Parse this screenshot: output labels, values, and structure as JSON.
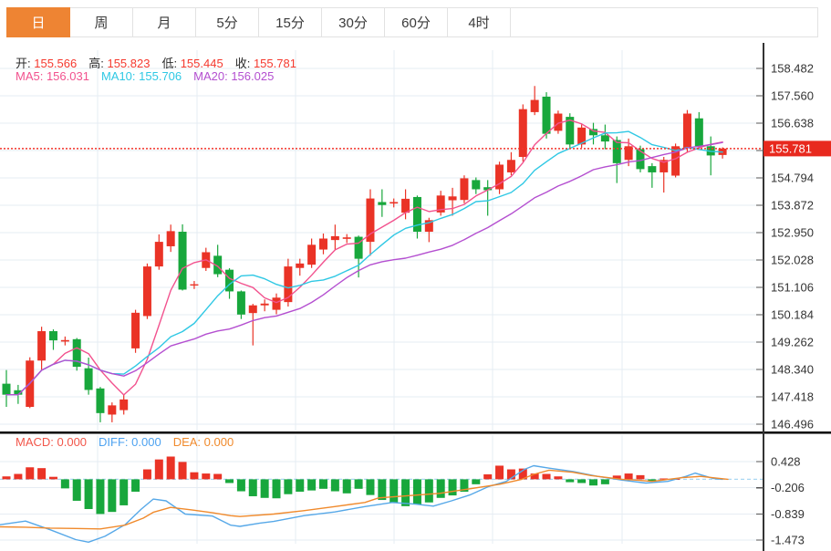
{
  "tabs": {
    "items": [
      {
        "label": "日",
        "active": true
      },
      {
        "label": "周",
        "active": false
      },
      {
        "label": "月",
        "active": false
      },
      {
        "label": "5分",
        "active": false
      },
      {
        "label": "15分",
        "active": false
      },
      {
        "label": "30分",
        "active": false
      },
      {
        "label": "60分",
        "active": false
      },
      {
        "label": "4时",
        "active": false
      }
    ]
  },
  "ohlc_bar": {
    "items": [
      {
        "label": "开:",
        "value": "155.566"
      },
      {
        "label": "高:",
        "value": "155.823"
      },
      {
        "label": "低:",
        "value": "155.445"
      },
      {
        "label": "收:",
        "value": "155.781"
      }
    ]
  },
  "ma_bar": {
    "items": [
      {
        "label": "MA5:",
        "value": "156.031",
        "color": "#f2528e"
      },
      {
        "label": "MA10:",
        "value": "155.706",
        "color": "#2fc8e4"
      },
      {
        "label": "MA20:",
        "value": "156.025",
        "color": "#b44fd0"
      }
    ]
  },
  "macd_bar": {
    "items": [
      {
        "label": "MACD:",
        "value": "0.000",
        "color": "#f2564a"
      },
      {
        "label": "DIFF:",
        "value": "0.000",
        "color": "#4da2f0"
      },
      {
        "label": "DEA:",
        "value": "0.000",
        "color": "#f08a2c"
      }
    ]
  },
  "price_axis": {
    "tick_labels": [
      "158.482",
      "157.560",
      "156.638",
      "",
      "154.794",
      "153.872",
      "152.950",
      "152.028",
      "151.106",
      "150.184",
      "149.262",
      "148.340",
      "147.418",
      "146.496"
    ],
    "current_tag": "155.781"
  },
  "macd_axis": {
    "tick_labels": [
      "0.428",
      "-0.206",
      "-0.839",
      "-1.473"
    ]
  },
  "colors": {
    "up": "#ea3326",
    "down": "#18a73c",
    "ma5": "#f2528e",
    "ma10": "#2fc8e4",
    "ma20": "#b44fd0",
    "diff": "#56a8e8",
    "dea": "#f08a2c",
    "tag_bg": "#e8291e",
    "dotted": "#f3352b",
    "tab_active": "#ee8433",
    "grid": "#e6ecf3",
    "axis_line": "#333333",
    "zero_dash": "#a9d7f2"
  },
  "chart_data": [
    {
      "type": "candlestick",
      "pane": "price",
      "y_tick_values": [
        158.482,
        157.56,
        156.638,
        155.716,
        154.794,
        153.872,
        152.95,
        152.028,
        151.106,
        150.184,
        149.262,
        148.34,
        147.418,
        146.496
      ],
      "last_price": 155.781,
      "ma_periods": [
        5,
        10,
        20
      ],
      "ma_last_values": {
        "ma5": 156.031,
        "ma10": 155.706,
        "ma20": 156.025
      },
      "candles": [
        [
          147.86,
          148.32,
          147.08,
          147.49
        ],
        [
          147.64,
          147.82,
          147.18,
          147.49
        ],
        [
          147.08,
          148.75,
          147.04,
          148.64
        ],
        [
          148.64,
          149.78,
          148.33,
          149.63
        ],
        [
          149.63,
          149.69,
          149.0,
          149.32
        ],
        [
          149.28,
          149.45,
          149.15,
          149.33
        ],
        [
          149.36,
          149.4,
          148.3,
          148.43
        ],
        [
          148.38,
          148.74,
          147.49,
          147.65
        ],
        [
          147.7,
          147.75,
          146.56,
          146.87
        ],
        [
          146.82,
          147.23,
          146.56,
          147.13
        ],
        [
          146.97,
          147.49,
          146.82,
          147.33
        ],
        [
          149.05,
          150.35,
          148.9,
          150.25
        ],
        [
          150.14,
          151.91,
          150.04,
          151.81
        ],
        [
          151.81,
          152.89,
          151.7,
          152.64
        ],
        [
          152.49,
          153.22,
          152.3,
          153.0
        ],
        [
          152.98,
          153.23,
          151.0,
          151.03
        ],
        [
          151.19,
          151.32,
          151.05,
          151.21
        ],
        [
          151.76,
          152.44,
          151.66,
          152.29
        ],
        [
          152.17,
          152.54,
          151.45,
          151.55
        ],
        [
          151.7,
          151.75,
          150.72,
          150.97
        ],
        [
          150.97,
          151.0,
          150.04,
          150.19
        ],
        [
          150.24,
          150.55,
          149.15,
          150.5
        ],
        [
          150.5,
          150.7,
          150.3,
          150.56
        ],
        [
          150.35,
          150.9,
          150.2,
          150.76
        ],
        [
          150.61,
          152.07,
          150.46,
          151.81
        ],
        [
          151.76,
          152.07,
          151.5,
          151.91
        ],
        [
          151.87,
          152.75,
          151.76,
          152.54
        ],
        [
          152.38,
          152.92,
          152.22,
          152.75
        ],
        [
          152.7,
          153.22,
          152.38,
          152.83
        ],
        [
          152.74,
          152.9,
          152.6,
          152.79
        ],
        [
          152.81,
          152.85,
          151.44,
          152.07
        ],
        [
          152.64,
          154.41,
          152.17,
          154.1
        ],
        [
          153.98,
          154.41,
          153.48,
          153.88
        ],
        [
          153.93,
          154.1,
          153.8,
          153.98
        ],
        [
          153.62,
          154.41,
          153.4,
          154.09
        ],
        [
          154.15,
          154.2,
          152.75,
          152.98
        ],
        [
          152.98,
          153.45,
          152.63,
          153.37
        ],
        [
          153.63,
          154.36,
          153.52,
          154.2
        ],
        [
          154.04,
          154.46,
          153.52,
          154.17
        ],
        [
          154.05,
          154.88,
          153.94,
          154.78
        ],
        [
          154.72,
          154.81,
          154.25,
          154.41
        ],
        [
          154.48,
          154.72,
          153.52,
          154.38
        ],
        [
          154.41,
          155.34,
          154.25,
          155.24
        ],
        [
          154.98,
          155.66,
          154.88,
          155.4
        ],
        [
          155.5,
          157.27,
          155.34,
          157.11
        ],
        [
          157.01,
          157.89,
          156.91,
          157.42
        ],
        [
          157.53,
          157.68,
          156.12,
          156.28
        ],
        [
          156.38,
          157.06,
          156.28,
          156.96
        ],
        [
          156.85,
          156.97,
          155.81,
          155.92
        ],
        [
          155.92,
          156.59,
          155.81,
          156.49
        ],
        [
          156.44,
          156.65,
          155.92,
          156.23
        ],
        [
          156.23,
          156.59,
          155.76,
          156.02
        ],
        [
          156.07,
          156.19,
          154.62,
          155.29
        ],
        [
          155.4,
          156.12,
          155.19,
          155.86
        ],
        [
          155.76,
          155.88,
          154.98,
          155.09
        ],
        [
          155.19,
          155.29,
          154.46,
          154.98
        ],
        [
          154.98,
          155.5,
          154.3,
          155.4
        ],
        [
          154.87,
          155.95,
          154.81,
          155.86
        ],
        [
          155.81,
          157.08,
          155.66,
          156.96
        ],
        [
          156.8,
          157.01,
          155.76,
          155.86
        ],
        [
          155.86,
          156.19,
          154.88,
          155.55
        ],
        [
          155.566,
          155.823,
          155.445,
          155.781
        ]
      ]
    },
    {
      "type": "bar",
      "pane": "macd",
      "name": "MACD",
      "y_tick_values": [
        0.428,
        -0.206,
        -0.839,
        -1.473
      ],
      "last_values": {
        "macd": 0.0,
        "diff": 0.0,
        "dea": 0.0
      },
      "histogram": [
        0.07,
        0.13,
        0.29,
        0.27,
        0.06,
        -0.22,
        -0.52,
        -0.72,
        -0.84,
        -0.79,
        -0.63,
        -0.3,
        0.24,
        0.48,
        0.55,
        0.42,
        0.17,
        0.14,
        0.13,
        -0.09,
        -0.29,
        -0.41,
        -0.45,
        -0.46,
        -0.36,
        -0.3,
        -0.27,
        -0.23,
        -0.29,
        -0.34,
        -0.23,
        -0.38,
        -0.5,
        -0.56,
        -0.65,
        -0.61,
        -0.56,
        -0.45,
        -0.39,
        -0.3,
        -0.12,
        0.12,
        0.33,
        0.24,
        0.26,
        0.14,
        0.13,
        0.07,
        -0.07,
        -0.09,
        -0.15,
        -0.12,
        0.09,
        0.14,
        0.1,
        -0.05,
        0.02,
        0.01,
        0.0,
        0.0,
        0.0,
        0.0
      ],
      "diff_line": [
        [
          0,
          -1.1
        ],
        [
          28,
          -1.01
        ],
        [
          55,
          -1.22
        ],
        [
          83,
          -1.46
        ],
        [
          97,
          -1.52
        ],
        [
          115,
          -1.38
        ],
        [
          137,
          -1.1
        ],
        [
          155,
          -0.72
        ],
        [
          168,
          -0.48
        ],
        [
          182,
          -0.52
        ],
        [
          203,
          -0.84
        ],
        [
          233,
          -0.89
        ],
        [
          253,
          -1.11
        ],
        [
          263,
          -1.14
        ],
        [
          285,
          -1.06
        ],
        [
          300,
          -1.02
        ],
        [
          333,
          -0.88
        ],
        [
          367,
          -0.79
        ],
        [
          400,
          -0.66
        ],
        [
          430,
          -0.56
        ],
        [
          455,
          -0.6
        ],
        [
          475,
          -0.65
        ],
        [
          495,
          -0.52
        ],
        [
          515,
          -0.38
        ],
        [
          535,
          -0.18
        ],
        [
          555,
          -0.05
        ],
        [
          575,
          0.24
        ],
        [
          585,
          0.33
        ],
        [
          602,
          0.27
        ],
        [
          628,
          0.19
        ],
        [
          655,
          0.07
        ],
        [
          682,
          -0.02
        ],
        [
          708,
          -0.09
        ],
        [
          732,
          -0.05
        ],
        [
          752,
          0.07
        ],
        [
          762,
          0.15
        ],
        [
          782,
          0.02
        ],
        [
          792,
          0.0
        ]
      ],
      "dea_line": [
        [
          0,
          -1.15
        ],
        [
          28,
          -1.16
        ],
        [
          55,
          -1.18
        ],
        [
          83,
          -1.19
        ],
        [
          110,
          -1.2
        ],
        [
          137,
          -1.11
        ],
        [
          157,
          -0.94
        ],
        [
          168,
          -0.8
        ],
        [
          187,
          -0.68
        ],
        [
          210,
          -0.74
        ],
        [
          233,
          -0.81
        ],
        [
          253,
          -0.88
        ],
        [
          263,
          -0.9
        ],
        [
          300,
          -0.84
        ],
        [
          333,
          -0.76
        ],
        [
          367,
          -0.66
        ],
        [
          400,
          -0.56
        ],
        [
          415,
          -0.45
        ],
        [
          482,
          -0.34
        ],
        [
          548,
          -0.12
        ],
        [
          572,
          0.0
        ],
        [
          585,
          0.12
        ],
        [
          602,
          0.22
        ],
        [
          628,
          0.17
        ],
        [
          648,
          0.09
        ],
        [
          682,
          0.0
        ],
        [
          698,
          -0.02
        ],
        [
          715,
          -0.05
        ],
        [
          748,
          0.04
        ],
        [
          768,
          0.07
        ],
        [
          798,
          0.0
        ]
      ]
    }
  ]
}
